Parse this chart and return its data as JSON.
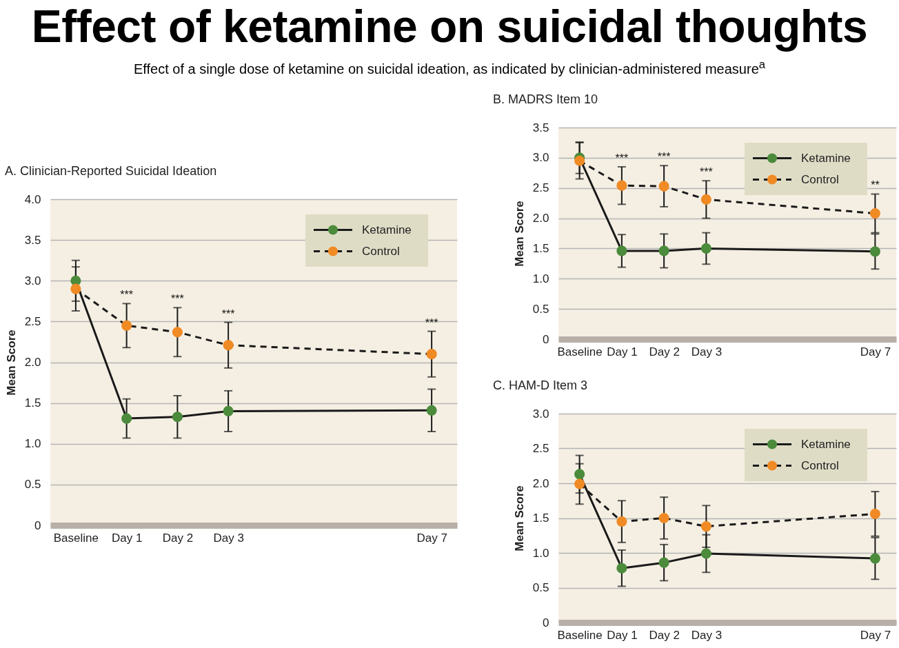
{
  "chart_data": [
    {
      "type": "other",
      "title": "Effect of ketamine on suicidal thoughts",
      "subtitle": "Effect of a single dose of ketamine on suicidal ideation, as indicated by clinician-administered measure$^{a}$"
    },
    {
      "type": "line",
      "title": "A. Clinician-Reported Suicidal Ideation",
      "ylabel": "Mean Score",
      "categories": [
        "Baseline",
        "Day 1",
        "Day 2",
        "Day 3",
        null,
        null,
        null,
        "Day 7"
      ],
      "ylim": [
        0,
        4
      ],
      "yticks": [
        0,
        0.5,
        {
          "value": 1,
          "label": "1.0"
        },
        1.5,
        {
          "value": 2,
          "label": "2.0"
        },
        2.5,
        {
          "value": 3,
          "label": "3.0"
        },
        3.5,
        {
          "value": 4,
          "label": "4.0"
        }
      ],
      "grid": "y",
      "legend": "top right",
      "marker": "circle",
      "series": [
        {
          "name": "Ketamine",
          "color": "#4b8b3b",
          "line_style": "solid",
          "values": [
            3.0,
            1.31,
            1.33,
            1.4,
            null,
            null,
            null,
            1.41
          ],
          "errors": [
            0.25,
            0.24,
            0.26,
            0.25,
            null,
            null,
            null,
            0.26
          ]
        },
        {
          "name": "Control",
          "color": "#f08a24",
          "line_style": "dashed",
          "values": [
            2.9,
            2.45,
            2.37,
            2.21,
            null,
            null,
            null,
            2.1
          ],
          "errors": [
            0.27,
            0.27,
            0.3,
            0.28,
            null,
            null,
            null,
            0.28
          ]
        }
      ],
      "annotations": [
        {
          "text": "***",
          "x": "Day 1",
          "y": 2.72
        },
        {
          "text": "***",
          "x": "Day 2",
          "y": 2.67
        },
        {
          "text": "***",
          "x": "Day 3",
          "y": 2.49
        },
        {
          "text": "***",
          "x": "Day 7",
          "y": 2.38
        }
      ]
    },
    {
      "type": "line",
      "title": "B. MADRS Item 10",
      "ylabel": "Mean Score",
      "categories": [
        "Baseline",
        "Day 1",
        "Day 2",
        "Day 3",
        null,
        null,
        null,
        "Day 7"
      ],
      "ylim": [
        0,
        3.5
      ],
      "yticks": [
        0,
        0.5,
        {
          "value": 1,
          "label": "1.0"
        },
        1.5,
        {
          "value": 2,
          "label": "2.0"
        },
        2.5,
        {
          "value": 3,
          "label": "3.0"
        },
        3.5
      ],
      "grid": "y",
      "legend": "top right",
      "marker": "circle",
      "series": [
        {
          "name": "Ketamine",
          "color": "#4b8b3b",
          "line_style": "solid",
          "values": [
            3.0,
            1.46,
            1.46,
            1.5,
            null,
            null,
            null,
            1.45
          ],
          "errors": [
            0.26,
            0.27,
            0.28,
            0.26,
            null,
            null,
            null,
            0.29
          ]
        },
        {
          "name": "Control",
          "color": "#f08a24",
          "line_style": "dashed",
          "values": [
            2.95,
            2.54,
            2.53,
            2.31,
            null,
            null,
            null,
            2.08
          ],
          "errors": [
            0.3,
            0.31,
            0.34,
            0.31,
            null,
            null,
            null,
            0.32
          ]
        }
      ],
      "annotations": [
        {
          "text": "***",
          "x": "Day 1",
          "y": 2.85
        },
        {
          "text": "***",
          "x": "Day 2",
          "y": 2.87
        },
        {
          "text": "***",
          "x": "Day 3",
          "y": 2.62
        },
        {
          "text": "**",
          "x": "Day 7",
          "y": 2.4
        }
      ]
    },
    {
      "type": "line",
      "title": "C. HAM-D Item 3",
      "ylabel": "Mean Score",
      "categories": [
        "Baseline",
        "Day 1",
        "Day 2",
        "Day 3",
        null,
        null,
        null,
        "Day 7"
      ],
      "ylim": [
        0,
        3
      ],
      "yticks": [
        0,
        0.5,
        {
          "value": 1,
          "label": "1.0"
        },
        1.5,
        {
          "value": 2,
          "label": "2.0"
        },
        2.5,
        {
          "value": 3,
          "label": "3.0"
        }
      ],
      "grid": "y",
      "legend": "top right",
      "marker": "circle",
      "series": [
        {
          "name": "Ketamine",
          "color": "#4b8b3b",
          "line_style": "solid",
          "values": [
            2.13,
            0.78,
            0.86,
            0.99,
            null,
            null,
            null,
            0.92
          ],
          "errors": [
            0.27,
            0.26,
            0.26,
            0.27,
            null,
            null,
            null,
            0.3
          ]
        },
        {
          "name": "Control",
          "color": "#f08a24",
          "line_style": "dashed",
          "values": [
            1.99,
            1.45,
            1.5,
            1.38,
            null,
            null,
            null,
            1.56
          ],
          "errors": [
            0.29,
            0.3,
            0.3,
            0.3,
            null,
            null,
            null,
            0.32
          ]
        }
      ]
    }
  ]
}
